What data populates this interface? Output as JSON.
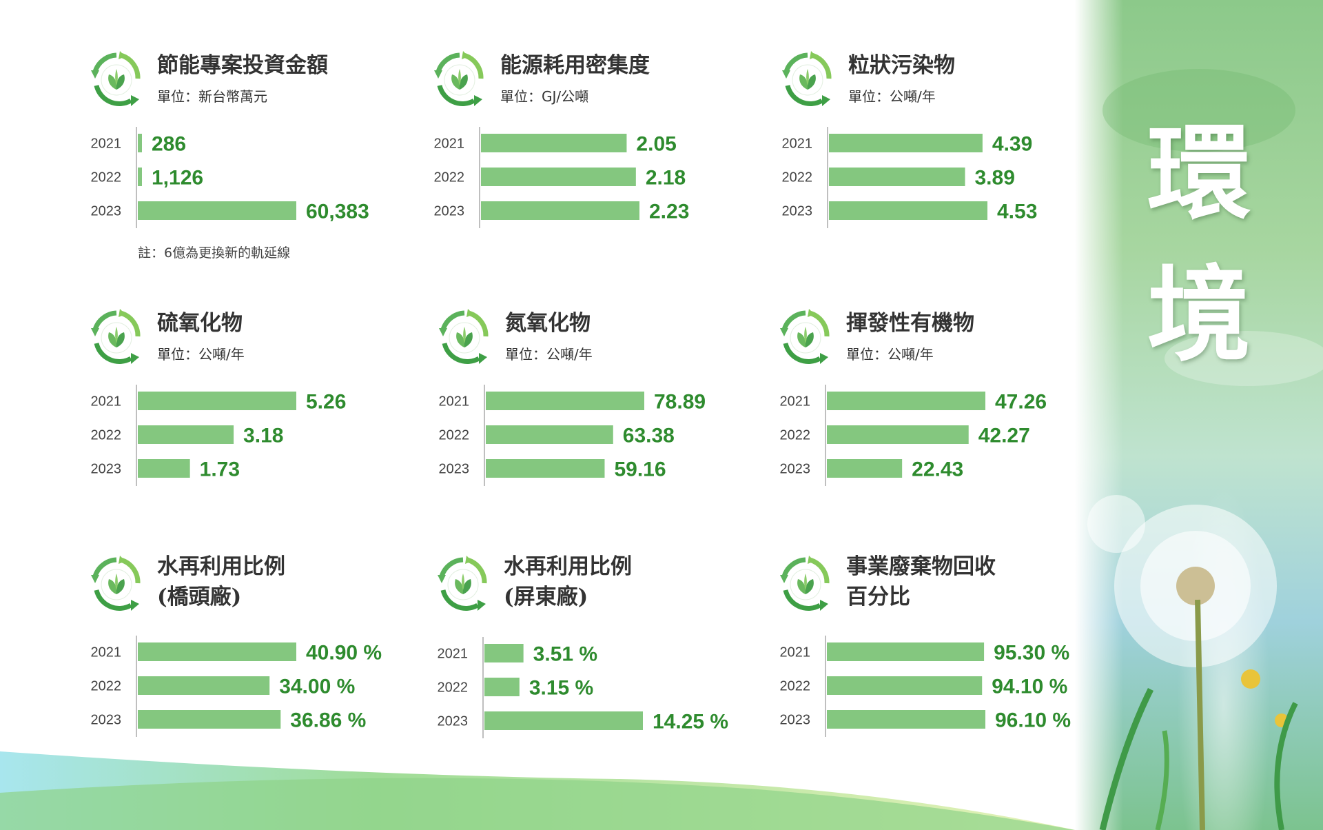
{
  "side_title": "環境",
  "note": "註：6億為更換新的軌延線",
  "colors": {
    "bar": "#84c77f",
    "value": "#2e8b2e",
    "axis": "#aaaaaa",
    "title": "#333333"
  },
  "chart_data": [
    {
      "type": "bar",
      "orientation": "horizontal",
      "title": "節能專案投資金額",
      "unit": "單位：新台幣萬元",
      "categories": [
        "2021",
        "2022",
        "2023"
      ],
      "values": [
        286,
        1126,
        60383
      ],
      "labels": [
        "286",
        "1,126",
        "60,383"
      ]
    },
    {
      "type": "bar",
      "orientation": "horizontal",
      "title": "能源耗用密集度",
      "unit": "單位：GJ/公噸",
      "categories": [
        "2021",
        "2022",
        "2023"
      ],
      "values": [
        2.05,
        2.18,
        2.23
      ],
      "labels": [
        "2.05",
        "2.18",
        "2.23"
      ]
    },
    {
      "type": "bar",
      "orientation": "horizontal",
      "title": "粒狀污染物",
      "unit": "單位：公噸/年",
      "categories": [
        "2021",
        "2022",
        "2023"
      ],
      "values": [
        4.39,
        3.89,
        4.53
      ],
      "labels": [
        "4.39",
        "3.89",
        "4.53"
      ]
    },
    {
      "type": "bar",
      "orientation": "horizontal",
      "title": "硫氧化物",
      "unit": "單位：公噸/年",
      "categories": [
        "2021",
        "2022",
        "2023"
      ],
      "values": [
        5.26,
        3.18,
        1.73
      ],
      "labels": [
        "5.26",
        "3.18",
        "1.73"
      ]
    },
    {
      "type": "bar",
      "orientation": "horizontal",
      "title": "氮氧化物",
      "unit": "單位：公噸/年",
      "categories": [
        "2021",
        "2022",
        "2023"
      ],
      "values": [
        78.89,
        63.38,
        59.16
      ],
      "labels": [
        "78.89",
        "63.38",
        "59.16"
      ]
    },
    {
      "type": "bar",
      "orientation": "horizontal",
      "title": "揮發性有機物",
      "unit": "單位：公噸/年",
      "categories": [
        "2021",
        "2022",
        "2023"
      ],
      "values": [
        47.26,
        42.27,
        22.43
      ],
      "labels": [
        "47.26",
        "42.27",
        "22.43"
      ]
    },
    {
      "type": "bar",
      "orientation": "horizontal",
      "title": "水再利用比例",
      "title_line2": "(橋頭廠)",
      "unit": "",
      "categories": [
        "2021",
        "2022",
        "2023"
      ],
      "values": [
        40.9,
        34.0,
        36.86
      ],
      "labels": [
        "40.90 %",
        "34.00 %",
        "36.86 %"
      ]
    },
    {
      "type": "bar",
      "orientation": "horizontal",
      "title": "水再利用比例",
      "title_line2": "(屏東廠)",
      "unit": "",
      "categories": [
        "2021",
        "2022",
        "2023"
      ],
      "values": [
        3.51,
        3.15,
        14.25
      ],
      "labels": [
        "3.51 %",
        "3.15 %",
        "14.25 %"
      ]
    },
    {
      "type": "bar",
      "orientation": "horizontal",
      "title": "事業廢棄物回收",
      "title_line2": "百分比",
      "unit": "",
      "categories": [
        "2021",
        "2022",
        "2023"
      ],
      "values": [
        95.3,
        94.1,
        96.1
      ],
      "labels": [
        "95.30 %",
        "94.10 %",
        "96.10 %"
      ]
    }
  ]
}
